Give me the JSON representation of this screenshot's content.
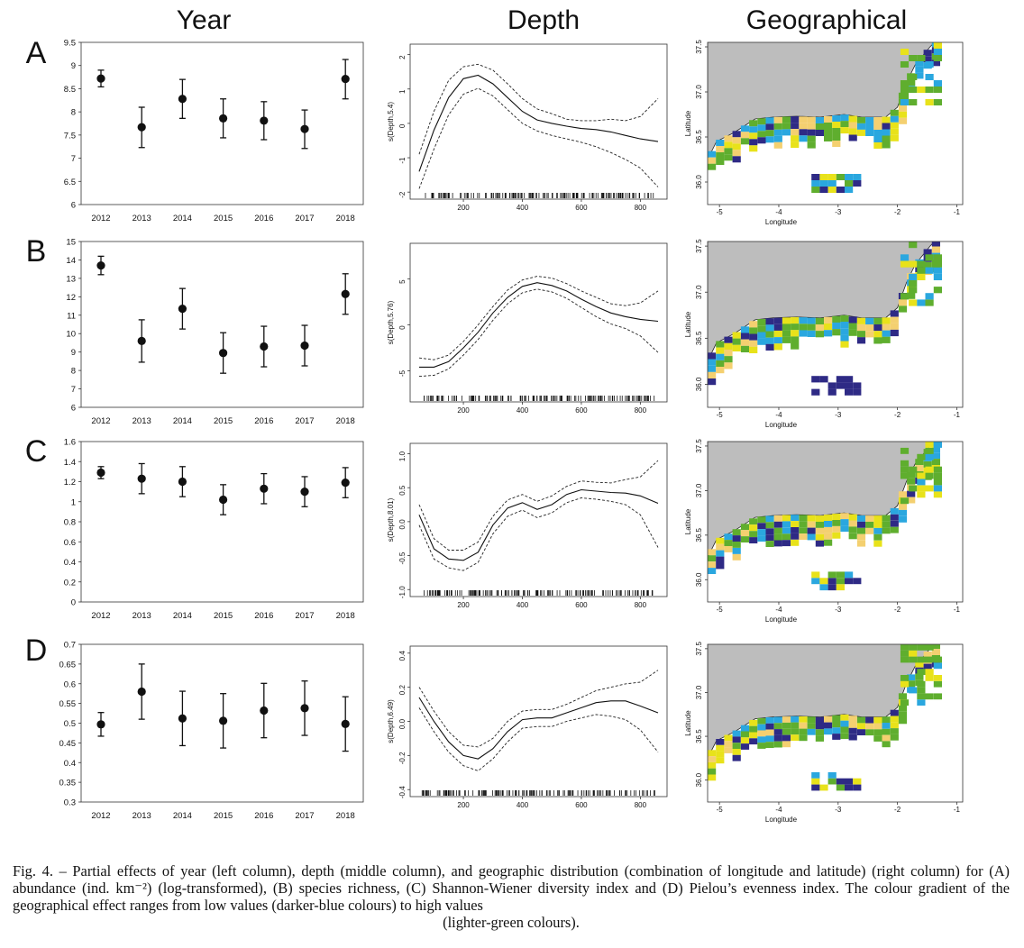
{
  "column_headers": [
    "Year",
    "Depth",
    "Geographical"
  ],
  "caption": {
    "text": "Fig. 4. – Partial effects of year (left column), depth (middle column), and geographic distribution (combination of longitude and latitude) (right column) for (A) abundance (ind. km⁻²) (log-transformed), (B) species richness, (C) Shannon-Wiener diversity index and (D) Pielou’s evenness index. The colour gradient of the geographical effect ranges from low values (darker-blue colours) to high values",
    "last_line": "(lighter-green colours)."
  },
  "colors": {
    "land": "#bdbdbd",
    "low": "#2e2a85",
    "mid_blue": "#2aa7df",
    "green": "#5fae2e",
    "yellow": "#e8e21a",
    "high": "#f4d070"
  },
  "chart_data": [
    {
      "panel": "A",
      "type": "scatter",
      "subtype": "errorbar",
      "categories": [
        "2012",
        "2013",
        "2014",
        "2015",
        "2016",
        "2017",
        "2018"
      ],
      "values": [
        8.72,
        7.67,
        8.28,
        7.86,
        7.81,
        7.63,
        8.71
      ],
      "lower": [
        8.54,
        7.23,
        7.86,
        7.44,
        7.4,
        7.21,
        8.28
      ],
      "upper": [
        8.9,
        8.1,
        8.7,
        8.28,
        8.22,
        8.04,
        9.13
      ],
      "ylim": [
        6,
        9.5
      ],
      "yticks": [
        "6",
        "6.5",
        "7",
        "7.5",
        "8",
        "8.5",
        "9",
        "9.5"
      ]
    },
    {
      "panel": "A",
      "type": "line",
      "ylabel": "s(Depth,5.4)",
      "x": [
        50,
        100,
        150,
        200,
        250,
        300,
        350,
        400,
        450,
        500,
        550,
        600,
        650,
        700,
        750,
        800,
        860
      ],
      "fit": [
        -1.4,
        -0.2,
        0.75,
        1.3,
        1.4,
        1.15,
        0.75,
        0.35,
        0.1,
        0.0,
        -0.08,
        -0.15,
        -0.18,
        -0.25,
        -0.35,
        -0.45,
        -0.53
      ],
      "lower": [
        -1.9,
        -0.75,
        0.25,
        0.85,
        1.02,
        0.8,
        0.4,
        0.0,
        -0.22,
        -0.35,
        -0.45,
        -0.55,
        -0.68,
        -0.85,
        -1.05,
        -1.3,
        -1.85
      ],
      "upper": [
        -0.9,
        0.35,
        1.25,
        1.65,
        1.72,
        1.55,
        1.15,
        0.72,
        0.42,
        0.28,
        0.12,
        0.08,
        0.08,
        0.12,
        0.08,
        0.2,
        0.72
      ],
      "xlim": [
        50,
        860
      ],
      "ylim": [
        -2.1,
        2.2
      ],
      "xticks": [
        "200",
        "400",
        "600",
        "800"
      ],
      "yticks": [
        "-2",
        "-1",
        "0",
        "1",
        "2"
      ]
    },
    {
      "panel": "A",
      "type": "heatmap",
      "xlabel": "Longitude",
      "ylabel": "Latitude",
      "xlim": [
        -5.2,
        -0.9
      ],
      "ylim": [
        35.75,
        37.55
      ],
      "xticks": [
        "-5",
        "-4",
        "-3",
        "-2",
        "-1"
      ],
      "yticks": [
        "36.0",
        "36.5",
        "37.0",
        "37.5"
      ]
    },
    {
      "panel": "B",
      "type": "scatter",
      "subtype": "errorbar",
      "categories": [
        "2012",
        "2013",
        "2014",
        "2015",
        "2016",
        "2017",
        "2018"
      ],
      "values": [
        13.7,
        9.6,
        11.35,
        8.95,
        9.3,
        9.35,
        12.15
      ],
      "lower": [
        13.2,
        8.45,
        10.25,
        7.85,
        8.2,
        8.25,
        11.05
      ],
      "upper": [
        14.2,
        10.75,
        12.45,
        10.05,
        10.4,
        10.45,
        13.25
      ],
      "ylim": [
        6,
        15
      ],
      "yticks": [
        "6",
        "7",
        "8",
        "9",
        "10",
        "11",
        "12",
        "13",
        "14",
        "15"
      ]
    },
    {
      "panel": "B",
      "type": "line",
      "ylabel": "s(Depth,5.76)",
      "x": [
        50,
        100,
        150,
        200,
        250,
        300,
        350,
        400,
        450,
        500,
        550,
        600,
        650,
        700,
        750,
        800,
        860
      ],
      "fit": [
        -4.6,
        -4.6,
        -4.0,
        -2.5,
        -0.8,
        1.3,
        3.0,
        4.2,
        4.6,
        4.3,
        3.7,
        2.8,
        2.0,
        1.3,
        0.9,
        0.6,
        0.4
      ],
      "lower": [
        -5.6,
        -5.5,
        -4.8,
        -3.3,
        -1.6,
        0.5,
        2.3,
        3.5,
        3.9,
        3.6,
        2.9,
        1.9,
        0.9,
        0.1,
        -0.4,
        -1.2,
        -3.0
      ],
      "upper": [
        -3.6,
        -3.8,
        -3.3,
        -1.8,
        0.0,
        2.0,
        3.8,
        4.9,
        5.3,
        5.1,
        4.5,
        3.7,
        3.0,
        2.3,
        2.1,
        2.4,
        3.7
      ],
      "xlim": [
        50,
        860
      ],
      "ylim": [
        -8,
        8.5
      ],
      "xticks": [
        "200",
        "400",
        "600",
        "800"
      ],
      "yticks": [
        "-5",
        "0",
        "5"
      ]
    },
    {
      "panel": "B",
      "type": "heatmap",
      "xlabel": "Longitude",
      "ylabel": "Latitude",
      "xlim": [
        -5.2,
        -0.9
      ],
      "ylim": [
        35.75,
        37.55
      ],
      "xticks": [
        "-5",
        "-4",
        "-3",
        "-2",
        "-1"
      ],
      "yticks": [
        "36.0",
        "36.5",
        "37.0",
        "37.5"
      ]
    },
    {
      "panel": "C",
      "type": "scatter",
      "subtype": "errorbar",
      "categories": [
        "2012",
        "2013",
        "2014",
        "2015",
        "2016",
        "2017",
        "2018"
      ],
      "values": [
        1.29,
        1.23,
        1.2,
        1.02,
        1.13,
        1.1,
        1.19
      ],
      "lower": [
        1.23,
        1.08,
        1.05,
        0.87,
        0.98,
        0.95,
        1.04
      ],
      "upper": [
        1.35,
        1.38,
        1.35,
        1.17,
        1.28,
        1.25,
        1.34
      ],
      "ylim": [
        0,
        1.6
      ],
      "yticks": [
        "0",
        "0.2",
        "0.4",
        "0.6",
        "0.8",
        "1",
        "1.2",
        "1.4",
        "1.6"
      ]
    },
    {
      "panel": "C",
      "type": "line",
      "ylabel": "s(Depth,8.01)",
      "x": [
        50,
        100,
        150,
        200,
        250,
        300,
        350,
        400,
        450,
        500,
        550,
        600,
        650,
        700,
        750,
        800,
        860
      ],
      "fit": [
        0.1,
        -0.4,
        -0.55,
        -0.57,
        -0.45,
        -0.05,
        0.2,
        0.28,
        0.18,
        0.25,
        0.4,
        0.47,
        0.45,
        0.43,
        0.42,
        0.38,
        0.27
      ],
      "lower": [
        -0.05,
        -0.55,
        -0.68,
        -0.72,
        -0.6,
        -0.18,
        0.08,
        0.17,
        0.06,
        0.13,
        0.28,
        0.35,
        0.33,
        0.3,
        0.25,
        0.1,
        -0.38
      ],
      "upper": [
        0.25,
        -0.25,
        -0.42,
        -0.42,
        -0.3,
        0.08,
        0.32,
        0.4,
        0.3,
        0.38,
        0.52,
        0.6,
        0.58,
        0.57,
        0.62,
        0.66,
        0.9
      ],
      "xlim": [
        50,
        860
      ],
      "ylim": [
        -1.05,
        1.1
      ],
      "xticks": [
        "200",
        "400",
        "600",
        "800"
      ],
      "yticks": [
        "-1.0",
        "-0.5",
        "0.0",
        "0.5",
        "1.0"
      ]
    },
    {
      "panel": "C",
      "type": "heatmap",
      "xlabel": "Longitude",
      "ylabel": "Latitude",
      "xlim": [
        -5.2,
        -0.9
      ],
      "ylim": [
        35.75,
        37.55
      ],
      "xticks": [
        "-5",
        "-4",
        "-3",
        "-2",
        "-1"
      ],
      "yticks": [
        "36.0",
        "36.5",
        "37.0",
        "37.5"
      ]
    },
    {
      "panel": "D",
      "type": "scatter",
      "subtype": "errorbar",
      "categories": [
        "2012",
        "2013",
        "2014",
        "2015",
        "2016",
        "2017",
        "2018"
      ],
      "values": [
        0.497,
        0.58,
        0.512,
        0.506,
        0.532,
        0.538,
        0.498
      ],
      "lower": [
        0.467,
        0.51,
        0.443,
        0.437,
        0.463,
        0.469,
        0.429
      ],
      "upper": [
        0.527,
        0.65,
        0.581,
        0.575,
        0.601,
        0.607,
        0.567
      ],
      "ylim": [
        0.3,
        0.7
      ],
      "yticks": [
        "0.3",
        "0.35",
        "0.4",
        "0.45",
        "0.5",
        "0.55",
        "0.6",
        "0.65",
        "0.7"
      ]
    },
    {
      "panel": "D",
      "type": "line",
      "ylabel": "s(Depth,6.49)",
      "x": [
        50,
        100,
        150,
        200,
        250,
        300,
        350,
        400,
        450,
        500,
        550,
        600,
        650,
        700,
        750,
        800,
        860
      ],
      "fit": [
        0.14,
        0.0,
        -0.12,
        -0.2,
        -0.22,
        -0.16,
        -0.06,
        0.01,
        0.02,
        0.02,
        0.05,
        0.08,
        0.11,
        0.12,
        0.12,
        0.09,
        0.05
      ],
      "lower": [
        0.08,
        -0.06,
        -0.18,
        -0.26,
        -0.29,
        -0.22,
        -0.12,
        -0.04,
        -0.03,
        -0.03,
        0.0,
        0.02,
        0.04,
        0.03,
        0.01,
        -0.05,
        -0.18
      ],
      "upper": [
        0.2,
        0.06,
        -0.06,
        -0.14,
        -0.15,
        -0.1,
        0.0,
        0.06,
        0.07,
        0.07,
        0.1,
        0.14,
        0.18,
        0.2,
        0.22,
        0.23,
        0.3
      ],
      "xlim": [
        50,
        860
      ],
      "ylim": [
        -0.42,
        0.42
      ],
      "xticks": [
        "200",
        "400",
        "600",
        "800"
      ],
      "yticks": [
        "-0.4",
        "-0.2",
        "0.0",
        "0.2",
        "0.4"
      ]
    },
    {
      "panel": "D",
      "type": "heatmap",
      "xlabel": "Longitude",
      "ylabel": "Latitude",
      "xlim": [
        -5.2,
        -0.9
      ],
      "ylim": [
        35.75,
        37.55
      ],
      "xticks": [
        "-5",
        "-4",
        "-3",
        "-2",
        "-1"
      ],
      "yticks": [
        "36.0",
        "36.5",
        "37.0",
        "37.5"
      ]
    }
  ]
}
